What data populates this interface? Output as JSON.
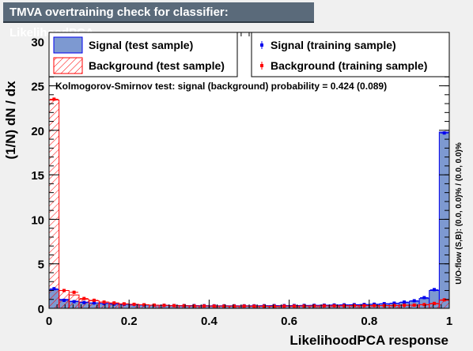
{
  "window": {
    "title": "TMVA overtraining check for classifier: LikelihoodPCA"
  },
  "legend": {
    "signal_test": "Signal (test sample)",
    "background_test": "Background (test sample)",
    "signal_train": "Signal (training sample)",
    "background_train": "Background (training sample)"
  },
  "ks_text": "Kolmogorov-Smirnov test: signal (background) probability = 0.424 (0.089)",
  "side_text": "U/O-flow (S,B): (0.0, 0.0)% / (0.0, 0.0)%",
  "colors": {
    "signal": "#7d99d1",
    "signal_line": "#0000ee",
    "background": "#ff0000",
    "frame_bg": "#ffffff"
  },
  "chart_data": {
    "type": "histogram",
    "xlabel": "LikelihoodPCA response",
    "ylabel": "(1/N) dN / dx",
    "xlim": [
      0,
      1
    ],
    "ylim": [
      0,
      31
    ],
    "x_ticks": [
      "0",
      "0.2",
      "0.4",
      "0.6",
      "0.8",
      "1"
    ],
    "y_ticks": [
      "0",
      "5",
      "10",
      "15",
      "20",
      "25",
      "30"
    ],
    "bins": 40,
    "series": [
      {
        "name": "Signal (test sample)",
        "style": "filled",
        "values": [
          2.1,
          1.0,
          0.8,
          0.7,
          0.6,
          0.55,
          0.5,
          0.45,
          0.4,
          0.38,
          0.35,
          0.33,
          0.32,
          0.3,
          0.3,
          0.29,
          0.28,
          0.28,
          0.28,
          0.28,
          0.28,
          0.29,
          0.3,
          0.3,
          0.31,
          0.32,
          0.33,
          0.35,
          0.36,
          0.38,
          0.4,
          0.42,
          0.45,
          0.5,
          0.55,
          0.65,
          0.8,
          1.1,
          2.0,
          19.8
        ]
      },
      {
        "name": "Background (test sample)",
        "style": "hatched",
        "values": [
          23.4,
          2.0,
          1.5,
          1.0,
          0.85,
          0.7,
          0.6,
          0.5,
          0.45,
          0.4,
          0.35,
          0.32,
          0.3,
          0.28,
          0.27,
          0.26,
          0.25,
          0.25,
          0.25,
          0.25,
          0.24,
          0.24,
          0.24,
          0.25,
          0.25,
          0.26,
          0.27,
          0.28,
          0.28,
          0.28,
          0.3,
          0.3,
          0.3,
          0.3,
          0.32,
          0.35,
          0.35,
          0.4,
          0.5,
          0.9
        ]
      },
      {
        "name": "Signal (training sample)",
        "style": "markers",
        "values": [
          2.2,
          0.9,
          0.75,
          0.65,
          0.6,
          0.55,
          0.48,
          0.45,
          0.42,
          0.38,
          0.35,
          0.33,
          0.31,
          0.3,
          0.3,
          0.29,
          0.28,
          0.28,
          0.28,
          0.28,
          0.28,
          0.29,
          0.3,
          0.3,
          0.31,
          0.32,
          0.33,
          0.35,
          0.37,
          0.39,
          0.41,
          0.43,
          0.46,
          0.52,
          0.58,
          0.7,
          0.85,
          1.2,
          2.1,
          19.7
        ]
      },
      {
        "name": "Background (training sample)",
        "style": "markers",
        "values": [
          23.5,
          2.0,
          1.8,
          1.1,
          0.9,
          0.7,
          0.6,
          0.5,
          0.45,
          0.4,
          0.36,
          0.33,
          0.3,
          0.29,
          0.27,
          0.26,
          0.25,
          0.25,
          0.25,
          0.25,
          0.24,
          0.24,
          0.24,
          0.25,
          0.25,
          0.26,
          0.27,
          0.28,
          0.28,
          0.29,
          0.3,
          0.3,
          0.3,
          0.31,
          0.32,
          0.34,
          0.36,
          0.42,
          0.55,
          0.95
        ]
      }
    ]
  }
}
